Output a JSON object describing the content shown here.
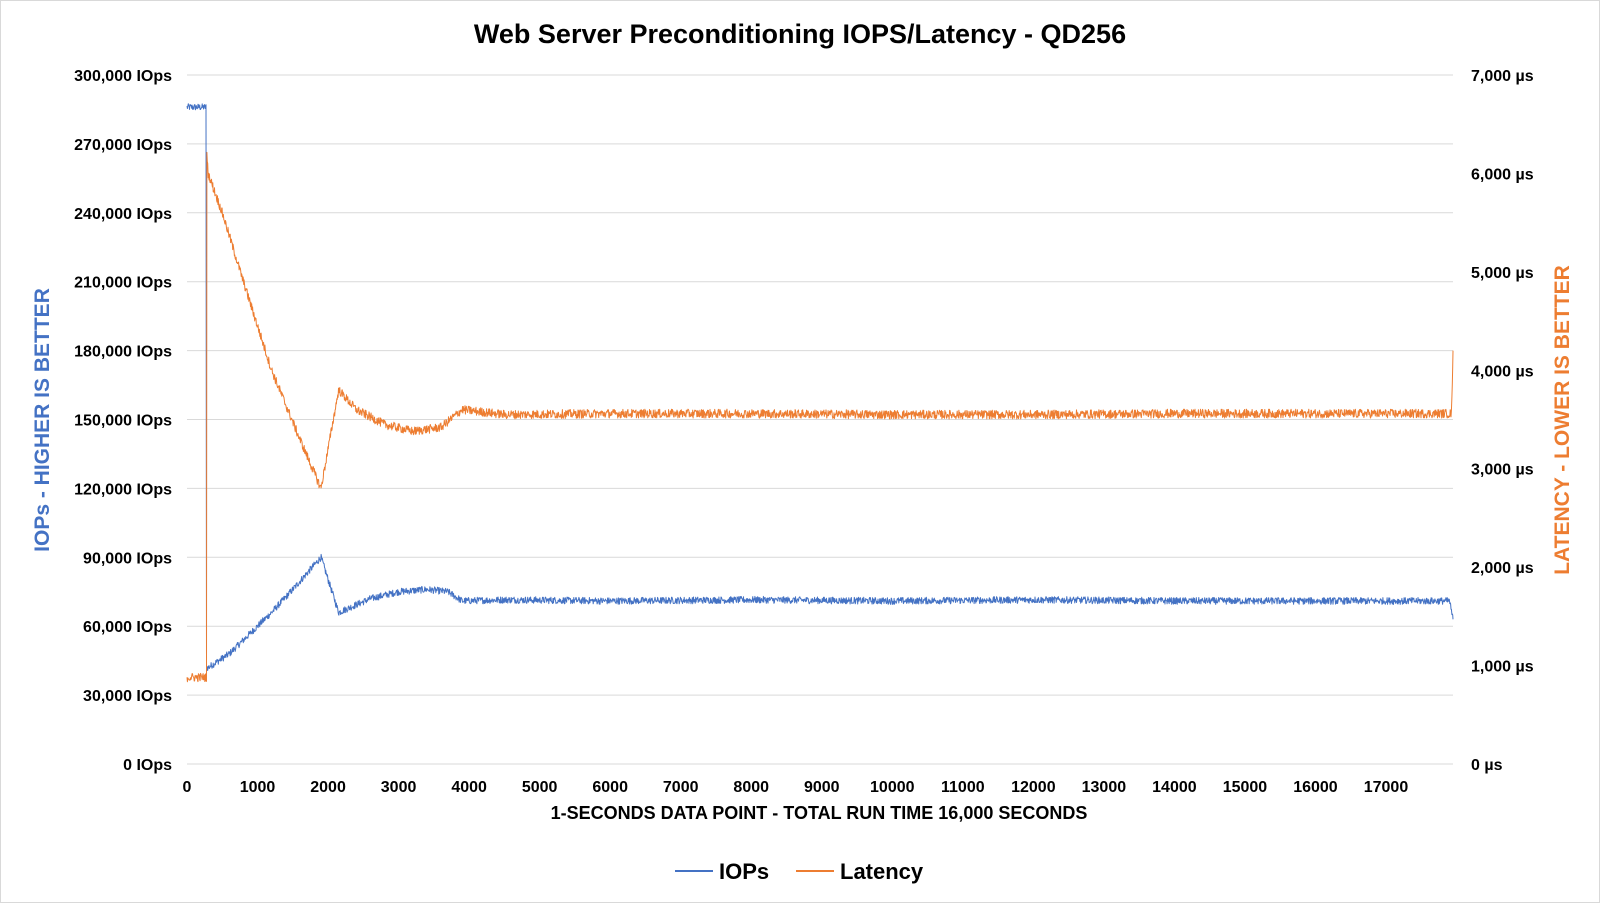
{
  "chart_data": {
    "type": "line",
    "title": "Web Server Preconditioning IOPS/Latency - QD256",
    "xlabel": "1-SECONDS DATA POINT - TOTAL RUN TIME 16,000 SECONDS",
    "ylabel_left": "IOPs - HIGHER IS BETTER",
    "ylabel_right": "LATENCY - LOWER IS BETTER",
    "xlim": [
      0,
      17950
    ],
    "ylim_left": [
      0,
      300000
    ],
    "ylim_right": [
      0,
      7000
    ],
    "grid": true,
    "legend_position": "bottom",
    "x_ticks": [
      "0",
      "1000",
      "2000",
      "3000",
      "4000",
      "5000",
      "6000",
      "7000",
      "8000",
      "9000",
      "10000",
      "11000",
      "12000",
      "13000",
      "14000",
      "15000",
      "16000",
      "17000"
    ],
    "y_left_ticks": [
      "0 IOps",
      "30,000 IOps",
      "60,000 IOps",
      "90,000 IOps",
      "120,000 IOps",
      "150,000 IOps",
      "180,000 IOps",
      "210,000 IOps",
      "240,000 IOps",
      "270,000 IOps",
      "300,000 IOps"
    ],
    "y_right_ticks": [
      "0 µs",
      "1,000 µs",
      "2,000 µs",
      "3,000 µs",
      "4,000 µs",
      "5,000 µs",
      "6,000 µs",
      "7,000 µs"
    ],
    "series": [
      {
        "name": "IOPs",
        "axis": "left",
        "color": "#4472C4",
        "noise": 1500,
        "x": [
          0,
          270,
          271,
          300,
          600,
          900,
          1200,
          1500,
          1900,
          2150,
          2300,
          2600,
          3000,
          3400,
          3700,
          3900,
          4500,
          6000,
          8000,
          10000,
          12000,
          14000,
          16000,
          17900,
          17950
        ],
        "values": [
          286000,
          286000,
          42000,
          42000,
          48000,
          57000,
          66000,
          76000,
          90000,
          66000,
          68000,
          72000,
          75000,
          76000,
          75000,
          71000,
          71500,
          71000,
          71500,
          71000,
          71500,
          71000,
          71000,
          71000,
          63000
        ]
      },
      {
        "name": "Latency",
        "axis": "right",
        "color": "#ED7D31",
        "noise": 45,
        "x": [
          0,
          280,
          281,
          300,
          500,
          800,
          1200,
          1600,
          1900,
          2000,
          2150,
          2400,
          2800,
          3200,
          3600,
          3900,
          4500,
          6000,
          8000,
          10000,
          12000,
          14000,
          16000,
          17930,
          17950
        ],
        "values": [
          880,
          880,
          6200,
          6000,
          5600,
          4900,
          4000,
          3300,
          2800,
          3200,
          3800,
          3600,
          3450,
          3380,
          3420,
          3600,
          3550,
          3560,
          3560,
          3550,
          3550,
          3560,
          3560,
          3560,
          4200
        ]
      }
    ]
  }
}
